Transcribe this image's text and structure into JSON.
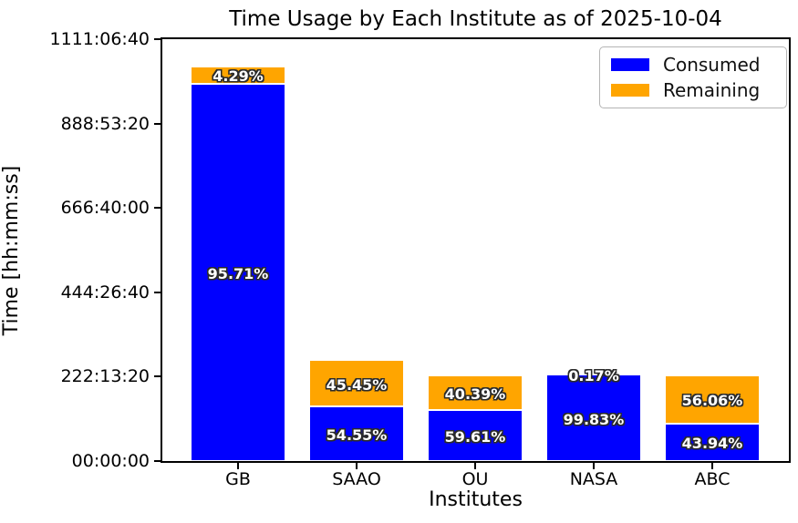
{
  "chart_data": {
    "type": "bar",
    "stacked": true,
    "title": "Time Usage by Each Institute as of 2025-10-04",
    "xlabel": "Institutes",
    "ylabel": "Time [hh:mm:ss]",
    "categories": [
      "GB",
      "SAAO",
      "OU",
      "NASA",
      "ABC"
    ],
    "series": [
      {
        "name": "Consumed",
        "color": "#0000ff",
        "pct": [
          95.71,
          54.55,
          59.61,
          99.83,
          43.94
        ],
        "labels": [
          "95.71%",
          "54.55%",
          "59.61%",
          "99.83%",
          "43.94%"
        ]
      },
      {
        "name": "Remaining",
        "color": "#ffa500",
        "pct": [
          4.29,
          45.45,
          40.39,
          0.17,
          56.06
        ],
        "labels": [
          "4.29%",
          "45.45%",
          "40.39%",
          "0.17%",
          "56.06%"
        ]
      }
    ],
    "totals_seconds": [
      3740000,
      955000,
      812000,
      818000,
      812000
    ],
    "ylim_seconds": [
      0,
      4000000
    ],
    "yticks": [
      {
        "seconds": 0,
        "label": "00:00:00"
      },
      {
        "seconds": 800000,
        "label": "222:13:20"
      },
      {
        "seconds": 1600000,
        "label": "444:26:40"
      },
      {
        "seconds": 2400000,
        "label": "666:40:00"
      },
      {
        "seconds": 3200000,
        "label": "888:53:20"
      },
      {
        "seconds": 4000000,
        "label": "1111:06:40"
      }
    ],
    "legend": {
      "position": "upper right",
      "entries": [
        "Consumed",
        "Remaining"
      ]
    },
    "grid": false,
    "bar_label_suffix": "%"
  }
}
